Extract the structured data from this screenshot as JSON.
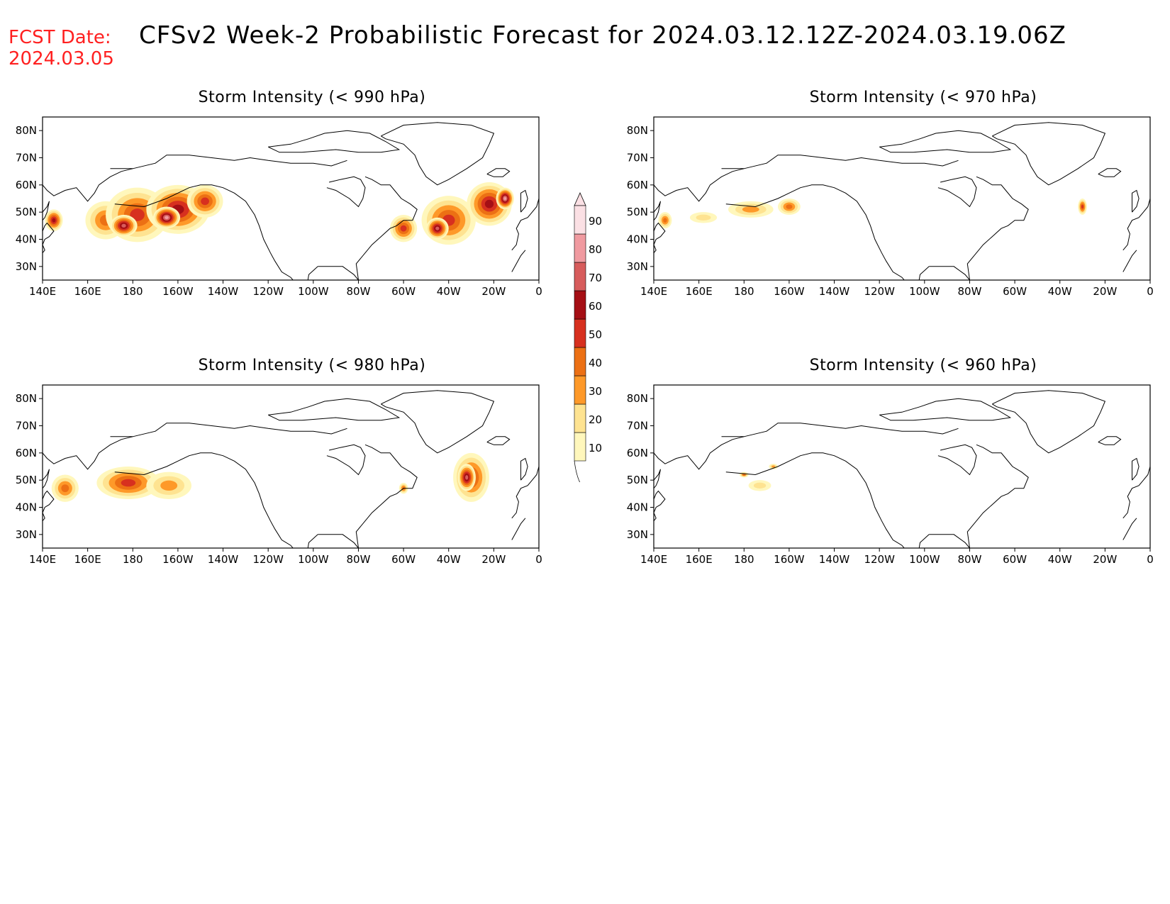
{
  "header": {
    "fcst_label": "FCST Date:",
    "fcst_date": "2024.03.05",
    "title": "CFSv2 Week-2 Probabilistic Forecast for 2024.03.12.12Z-2024.03.19.06Z"
  },
  "axes": {
    "lat_labels": [
      "80N",
      "70N",
      "60N",
      "50N",
      "40N",
      "30N"
    ],
    "lon_labels": [
      "140E",
      "160E",
      "180",
      "160W",
      "140W",
      "120W",
      "100W",
      "80W",
      "60W",
      "40W",
      "20W",
      "0"
    ],
    "lat_values": [
      80,
      70,
      60,
      50,
      40,
      30
    ],
    "lon_values": [
      140,
      160,
      180,
      200,
      220,
      240,
      260,
      280,
      300,
      320,
      340,
      360
    ],
    "lat_range": [
      25,
      85
    ],
    "lon_range": [
      140,
      360
    ]
  },
  "colors": {
    "levels": [
      10,
      20,
      30,
      40,
      50,
      60,
      70,
      80,
      90
    ],
    "fills": [
      "#fff7bc",
      "#fee391",
      "#fe9929",
      "#ec7014",
      "#d7301f",
      "#a50f15",
      "#d75c5c",
      "#f09aa0",
      "#fbe0e4"
    ]
  },
  "colorbar": {
    "labels": [
      "90",
      "80",
      "70",
      "60",
      "50",
      "40",
      "30",
      "20",
      "10"
    ]
  },
  "panels": [
    {
      "title": "Storm Intensity (< 990 hPa)",
      "regions": [
        {
          "lon": 168,
          "lat": 47,
          "rx": 9,
          "ry": 7,
          "level": 3
        },
        {
          "lon": 182,
          "lat": 49,
          "rx": 14,
          "ry": 10,
          "level": 4
        },
        {
          "lon": 200,
          "lat": 51,
          "rx": 14,
          "ry": 9,
          "level": 5
        },
        {
          "lon": 212,
          "lat": 54,
          "rx": 8,
          "ry": 6,
          "level": 4
        },
        {
          "lon": 176,
          "lat": 45,
          "rx": 6,
          "ry": 4,
          "level": 6
        },
        {
          "lon": 195,
          "lat": 48,
          "rx": 6,
          "ry": 4,
          "level": 7
        },
        {
          "lon": 145,
          "lat": 47,
          "rx": 4,
          "ry": 4,
          "level": 5
        },
        {
          "lon": 300,
          "lat": 44,
          "rx": 6,
          "ry": 5,
          "level": 4
        },
        {
          "lon": 320,
          "lat": 47,
          "rx": 12,
          "ry": 9,
          "level": 4
        },
        {
          "lon": 338,
          "lat": 53,
          "rx": 10,
          "ry": 8,
          "level": 5
        },
        {
          "lon": 315,
          "lat": 44,
          "rx": 5,
          "ry": 4,
          "level": 6
        },
        {
          "lon": 345,
          "lat": 55,
          "rx": 4,
          "ry": 4,
          "level": 7
        }
      ]
    },
    {
      "title": "Storm Intensity (< 970 hPa)",
      "regions": [
        {
          "lon": 145,
          "lat": 47,
          "rx": 3,
          "ry": 3,
          "level": 3
        },
        {
          "lon": 162,
          "lat": 48,
          "rx": 6,
          "ry": 2,
          "level": 1
        },
        {
          "lon": 183,
          "lat": 51,
          "rx": 10,
          "ry": 3,
          "level": 2
        },
        {
          "lon": 200,
          "lat": 52,
          "rx": 5,
          "ry": 3,
          "level": 3
        },
        {
          "lon": 330,
          "lat": 52,
          "rx": 2,
          "ry": 3,
          "level": 4
        }
      ]
    },
    {
      "title": "Storm Intensity (< 980 hPa)",
      "regions": [
        {
          "lon": 150,
          "lat": 47,
          "rx": 6,
          "ry": 5,
          "level": 3
        },
        {
          "lon": 178,
          "lat": 49,
          "rx": 14,
          "ry": 6,
          "level": 4
        },
        {
          "lon": 196,
          "lat": 48,
          "rx": 10,
          "ry": 5,
          "level": 2
        },
        {
          "lon": 300,
          "lat": 47,
          "rx": 2,
          "ry": 2,
          "level": 3
        },
        {
          "lon": 330,
          "lat": 51,
          "rx": 8,
          "ry": 9,
          "level": 4
        },
        {
          "lon": 328,
          "lat": 51,
          "rx": 4,
          "ry": 5,
          "level": 6
        }
      ]
    },
    {
      "title": "Storm Intensity (< 960 hPa)",
      "regions": [
        {
          "lon": 180,
          "lat": 52,
          "rx": 2,
          "ry": 1,
          "level": 3
        },
        {
          "lon": 187,
          "lat": 48,
          "rx": 5,
          "ry": 2,
          "level": 1
        },
        {
          "lon": 193,
          "lat": 55,
          "rx": 2,
          "ry": 1,
          "level": 2
        }
      ]
    }
  ]
}
